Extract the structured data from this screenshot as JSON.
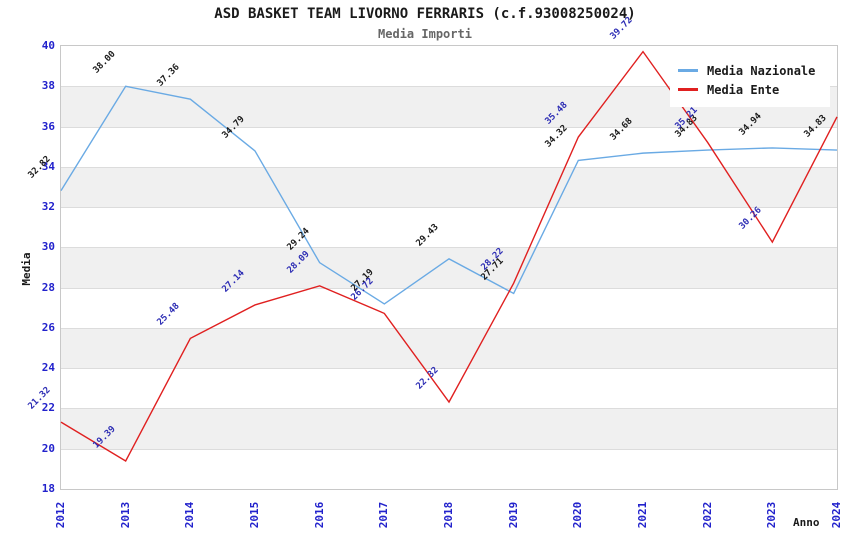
{
  "title": "ASD BASKET TEAM LIVORNO FERRARIS (c.f.93008250024)",
  "subtitle": "Media Importi",
  "axes": {
    "x_label": "Anno",
    "y_label": "Media"
  },
  "colors": {
    "tick_label": "#2222cc",
    "stripe_gray": "#f0f0f0",
    "grid_line": "#dcdcdc",
    "plot_border": "#c8c8c8",
    "title": "#1a1a1a",
    "subtitle": "#666666"
  },
  "chart_data": {
    "type": "line",
    "x": [
      2012,
      2013,
      2014,
      2015,
      2016,
      2017,
      2018,
      2019,
      2020,
      2021,
      2022,
      2023,
      2024
    ],
    "series": [
      {
        "name": "Media Nazionale",
        "color": "#6aaae4",
        "label_color": "#1a1a1a",
        "values": [
          32.82,
          38.0,
          37.36,
          34.79,
          29.24,
          27.19,
          29.43,
          27.71,
          34.32,
          34.68,
          34.83,
          34.94,
          34.83
        ]
      },
      {
        "name": "Media Ente",
        "color": "#e02020",
        "label_color": "#2d2db4",
        "values": [
          21.32,
          19.39,
          25.48,
          27.14,
          28.09,
          26.72,
          22.32,
          28.22,
          35.48,
          39.72,
          35.21,
          30.26,
          36.48
        ]
      }
    ],
    "xlabel": "Anno",
    "ylabel": "Media",
    "ylim": [
      18,
      40
    ],
    "ytick_step": 2,
    "value_label_decimals": 2,
    "grid": "horizontal-stripes",
    "legend_position": "top-right"
  }
}
